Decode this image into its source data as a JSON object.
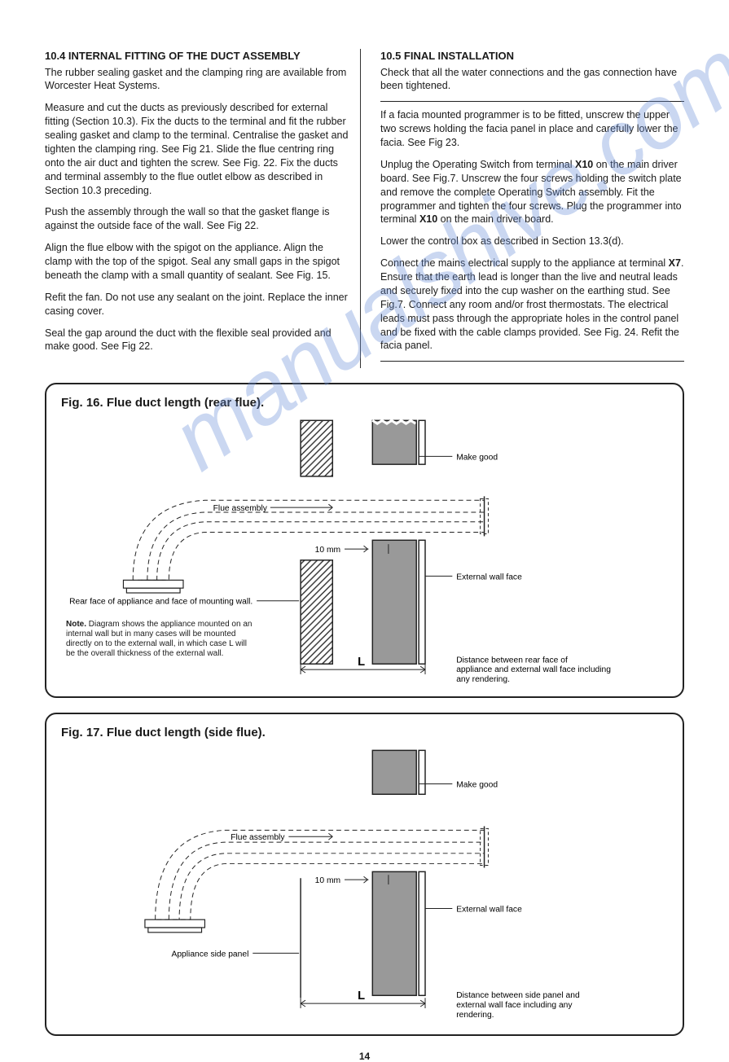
{
  "watermark": "manualshive.com",
  "left_col": {
    "heading": "10.4 INTERNAL FITTING OF THE DUCT ASSEMBLY",
    "p1": "The rubber sealing gasket and the clamping ring are available from Worcester Heat Systems.",
    "p2": "Measure and cut the ducts as previously described for external fitting (Section 10.3). Fix the ducts to the terminal and fit the rubber sealing gasket and clamp to the terminal. Centralise the gasket and tighten the clamping ring. See Fig 21. Slide the flue centring ring onto the air duct and tighten the screw. See Fig. 22. Fix the ducts and terminal assembly to the flue outlet elbow as described in Section 10.3 preceding.",
    "p3": "Push the assembly through the wall so that the gasket flange is against the outside face of the wall. See Fig 22.",
    "p4": "Align the flue elbow with the spigot on the appliance. Align the clamp with the top of the spigot. Seal any small gaps in the spigot beneath the clamp with a small quantity of sealant. See Fig. 15.",
    "p5": "Refit the fan. Do not use any sealant on the joint. Replace the inner casing cover.",
    "p6": "Seal the gap around the duct with the flexible seal provided and make good. See Fig 22."
  },
  "right_col": {
    "heading": "10.5 FINAL INSTALLATION",
    "p1": "Check that all the water connections and the gas connection have been tightened.",
    "p2": "If a facia mounted programmer is to be fitted, unscrew the upper two screws holding the facia panel in place and carefully lower the facia. See Fig 23.",
    "p3a": "Unplug the Operating Switch from terminal ",
    "p3bold1": "X10",
    "p3b": " on the main driver board. See Fig.7. Unscrew the four screws holding the switch plate and remove the complete Operating Switch assembly. Fit the programmer and tighten the four screws. Plug the programmer into terminal ",
    "p3bold2": "X10",
    "p3c": " on the main driver board.",
    "p4": "Lower the control box as described in Section 13.3(d).",
    "p5a": "Connect the mains electrical supply to the appliance at terminal ",
    "p5bold": "X7",
    "p5b": ". Ensure that the earth lead is longer than the live and neutral leads and securely fixed into the cup washer on the earthing stud. See Fig.7. Connect any room and/or frost thermostats. The electrical leads must pass through the appropriate holes in the control panel and be fixed with the cable clamps provided. See Fig. 24. Refit the facia panel."
  },
  "fig16": {
    "title": "Fig. 16. Flue duct length (rear flue).",
    "labels": {
      "make_good": "Make good",
      "flue_assembly": "Flue assembly",
      "ten_mm": "10 mm",
      "external_wall": "External wall face",
      "rear_face": "Rear face of appliance and face of mounting wall.",
      "L": "L",
      "distance": "Distance between rear face of appliance and external wall face including any rendering."
    },
    "note_bold": "Note.",
    "note": " Diagram shows the appliance mounted on an internal wall but in many cases will be mounted directly on to the external wall, in which case L will be the overall thickness of the external wall."
  },
  "fig17": {
    "title": "Fig. 17. Flue duct length (side flue).",
    "labels": {
      "make_good": "Make good",
      "flue_assembly": "Flue assembly",
      "ten_mm": "10 mm",
      "external_wall": "External wall face",
      "side_panel": "Appliance side panel",
      "L": "L",
      "distance": "Distance between side panel and external wall face including any rendering."
    }
  },
  "page_number": "14",
  "colors": {
    "text": "#1a1a1a",
    "border": "#222222",
    "hatch": "#333333",
    "wall_fill": "#888888",
    "watermark": "#6a8fd8"
  }
}
